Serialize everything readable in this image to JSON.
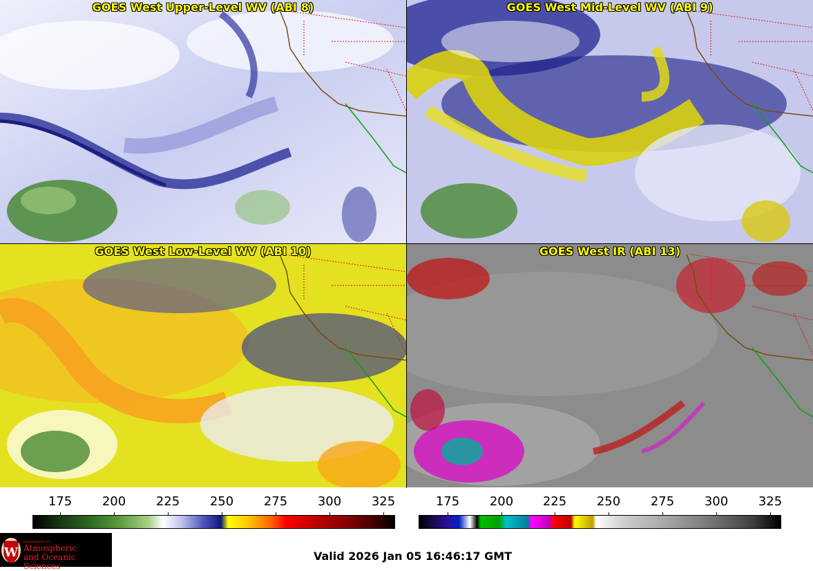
{
  "panels": [
    {
      "title": "GOES West Upper-Level WV (ABI 8)"
    },
    {
      "title": "GOES West Mid-Level WV (ABI 9)"
    },
    {
      "title": "GOES West Low-Level WV (ABI 10)"
    },
    {
      "title": "GOES West IR (ABI 13)"
    }
  ],
  "colorbars": [
    {
      "name": "wv",
      "ticks": [
        "175",
        "200",
        "225",
        "250",
        "275",
        "300",
        "325"
      ]
    },
    {
      "name": "ir",
      "ticks": [
        "175",
        "200",
        "225",
        "250",
        "275",
        "300",
        "325"
      ]
    }
  ],
  "logo": {
    "dept": "Department of",
    "line1": "Atmospheric",
    "line2": "and Oceanic Sciences",
    "seal": "W"
  },
  "valid": "Valid 2026 Jan 05 16:46:17 GMT",
  "colors": {
    "title": "#ffff00",
    "borders_state": "#e01010",
    "coast": "#7a4a10",
    "mexico_coast": "#10a010"
  }
}
